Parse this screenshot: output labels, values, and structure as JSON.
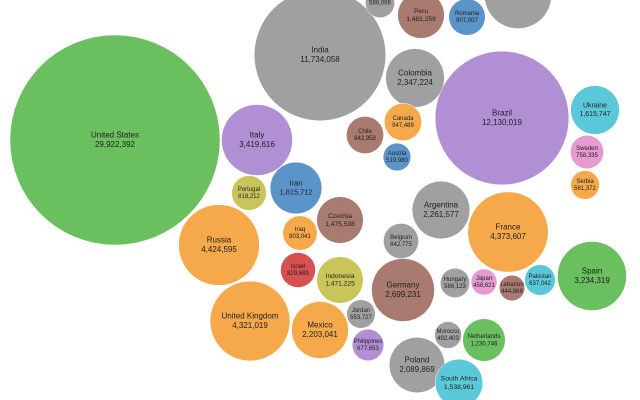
{
  "chart_data": {
    "type": "packed-bubble",
    "categories": [
      "United States",
      "India",
      "Brazil",
      null,
      null,
      "Peru",
      "Romania",
      "Colombia",
      "Italy",
      "Chile",
      "Canada",
      "Ukraine",
      "Sweden",
      "Serbia",
      "Iran",
      "Portugal",
      "Czechia",
      "Argentina",
      "France",
      "Russia",
      "Iraq",
      "Belgium",
      "Spain",
      "Indonesia",
      "Israel",
      "Germany",
      "Hungary",
      "Japan",
      "Pakistan",
      "Lebanon",
      "United Kingdom",
      "Mexico",
      "Jordan",
      "Netherlands",
      "Morocco",
      "Philippines",
      "Poland",
      "South Africa",
      "Austria"
    ],
    "values": [
      29922392,
      11734058,
      12130019,
      3061520,
      586096,
      1481259,
      907007,
      2347224,
      3419616,
      942958,
      947489,
      1615747,
      758335,
      561372,
      1815712,
      818212,
      1475538,
      2261577,
      4373607,
      4424595,
      803041,
      842775,
      3234319,
      1471225,
      829689,
      2699231,
      586123,
      458621,
      637042,
      444868,
      4321019,
      2203041,
      553727,
      1230746,
      492403,
      677653,
      2089869,
      1538961,
      519980
    ],
    "value_labels": [
      "29,922,392",
      "11,734,058",
      "12,130,019",
      "3,061,520",
      "586,096",
      "1,481,259",
      "907,007",
      "2,347,224",
      "3,419,616",
      "942,958",
      "947,489",
      "1,615,747",
      "758,335",
      "561,372",
      "1,815,712",
      "818,212",
      "1,475,538",
      "2,261,577",
      "4,373,607",
      "4,424,595",
      "803,041",
      "842,775",
      "3,234,319",
      "1,471,225",
      "829,689",
      "2,699,231",
      "586,123",
      "458,621",
      "637,042",
      "444,868",
      "4,321,019",
      "2,203,041",
      "553,727",
      "1,230,746",
      "492,403",
      "677,653",
      "2,089,869",
      "1,538,961",
      "519,980"
    ],
    "colors": [
      "#6abf5e",
      "#a0a0a0",
      "#b08fd4",
      "#a0a0a0",
      "#a0a0a0",
      "#a97a6f",
      "#5b94c9",
      "#a0a0a0",
      "#b08fd4",
      "#a97a6f",
      "#f5a94a",
      "#5ac8d8",
      "#e59ad0",
      "#f5a94a",
      "#5b94c9",
      "#c9c55a",
      "#a97a6f",
      "#a0a0a0",
      "#f5a94a",
      "#f5a94a",
      "#f5a94a",
      "#a0a0a0",
      "#6abf5e",
      "#c9c55a",
      "#d95050",
      "#a97a6f",
      "#a0a0a0",
      "#e59ad0",
      "#5ac8d8",
      "#a97a6f",
      "#f5a94a",
      "#f5a94a",
      "#a0a0a0",
      "#6abf5e",
      "#a0a0a0",
      "#b08fd4",
      "#a0a0a0",
      "#5ac8d8",
      "#5b94c9"
    ]
  }
}
